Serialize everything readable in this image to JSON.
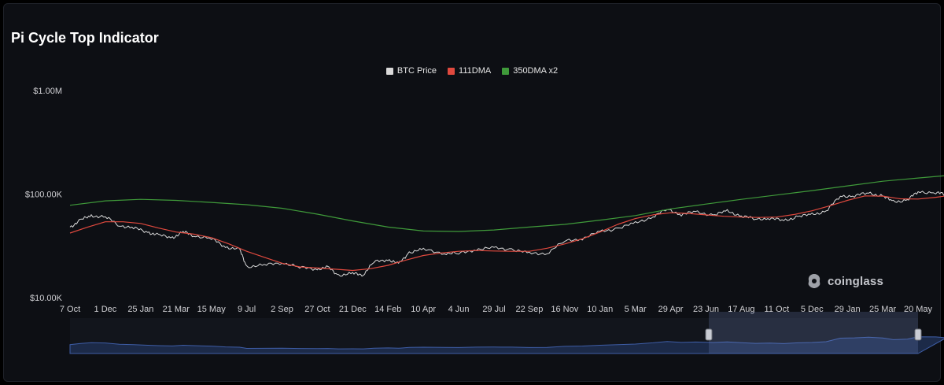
{
  "title": "Pi Cycle Top Indicator",
  "brand": "coinglass",
  "legend": [
    {
      "label": "BTC Price",
      "color": "#d9d9d9"
    },
    {
      "label": "111DMA",
      "color": "#e0493e"
    },
    {
      "label": "350DMA x2",
      "color": "#3f9a3a"
    }
  ],
  "chart_data": {
    "type": "line",
    "y_scale": "log",
    "ylim": [
      10000,
      1000000
    ],
    "y_ticks": [
      {
        "label": "$1.00M",
        "value": 1000000
      },
      {
        "label": "$100.00K",
        "value": 100000
      },
      {
        "label": "$10.00K",
        "value": 10000
      }
    ],
    "x_ticks": [
      "7 Oct",
      "1 Dec",
      "25 Jan",
      "21 Mar",
      "15 May",
      "9 Jul",
      "2 Sep",
      "27 Oct",
      "21 Dec",
      "14 Feb",
      "10 Apr",
      "4 Jun",
      "29 Jul",
      "22 Sep",
      "16 Nov",
      "10 Jan",
      "5 Mar",
      "29 Apr",
      "23 Jun",
      "17 Aug",
      "11 Oct",
      "5 Dec",
      "29 Jan",
      "25 Mar",
      "20 May"
    ],
    "series": [
      {
        "name": "BTC Price",
        "color": "#d9d9d9",
        "values": [
          [
            0,
            48000
          ],
          [
            0.3,
            56000
          ],
          [
            0.6,
            62000
          ],
          [
            1.0,
            60000
          ],
          [
            1.4,
            50000
          ],
          [
            1.8,
            47000
          ],
          [
            2.2,
            43000
          ],
          [
            2.5,
            40000
          ],
          [
            2.9,
            38000
          ],
          [
            3.2,
            43000
          ],
          [
            3.5,
            40000
          ],
          [
            4.0,
            37000
          ],
          [
            4.4,
            31000
          ],
          [
            4.8,
            29000
          ],
          [
            5.0,
            20000
          ],
          [
            5.5,
            20500
          ],
          [
            6.0,
            22000
          ],
          [
            6.5,
            19500
          ],
          [
            7.0,
            19000
          ],
          [
            7.3,
            19500
          ],
          [
            7.6,
            16500
          ],
          [
            8.0,
            17000
          ],
          [
            8.3,
            16800
          ],
          [
            8.6,
            22000
          ],
          [
            9.0,
            23500
          ],
          [
            9.3,
            21000
          ],
          [
            9.6,
            27500
          ],
          [
            10.0,
            29000
          ],
          [
            10.6,
            27000
          ],
          [
            11.0,
            26500
          ],
          [
            11.5,
            29500
          ],
          [
            12.0,
            30000
          ],
          [
            12.5,
            29500
          ],
          [
            13.0,
            26500
          ],
          [
            13.5,
            27000
          ],
          [
            14.0,
            35000
          ],
          [
            14.5,
            37500
          ],
          [
            15.0,
            43000
          ],
          [
            15.5,
            47000
          ],
          [
            16.0,
            52000
          ],
          [
            16.5,
            61000
          ],
          [
            16.9,
            71000
          ],
          [
            17.3,
            64000
          ],
          [
            17.7,
            67000
          ],
          [
            18.2,
            63000
          ],
          [
            18.6,
            68000
          ],
          [
            19.0,
            62000
          ],
          [
            19.4,
            57000
          ],
          [
            19.8,
            59000
          ],
          [
            20.2,
            55000
          ],
          [
            20.6,
            61000
          ],
          [
            21.0,
            63000
          ],
          [
            21.4,
            69000
          ],
          [
            21.8,
            95000
          ],
          [
            22.2,
            97000
          ],
          [
            22.6,
            102000
          ],
          [
            23.0,
            96000
          ],
          [
            23.3,
            84000
          ],
          [
            23.7,
            88000
          ],
          [
            24.0,
            105000
          ],
          [
            24.5,
            104000
          ],
          [
            24.8,
            98000
          ]
        ]
      },
      {
        "name": "111DMA",
        "color": "#e0493e",
        "values": [
          [
            0,
            42000
          ],
          [
            0.5,
            48000
          ],
          [
            1.0,
            54000
          ],
          [
            1.5,
            54000
          ],
          [
            2.0,
            52000
          ],
          [
            2.5,
            47000
          ],
          [
            3.0,
            43000
          ],
          [
            3.5,
            41000
          ],
          [
            4.0,
            38000
          ],
          [
            4.5,
            33000
          ],
          [
            5.0,
            28000
          ],
          [
            5.5,
            24500
          ],
          [
            6.0,
            21500
          ],
          [
            6.5,
            19800
          ],
          [
            7.0,
            19300
          ],
          [
            7.5,
            18800
          ],
          [
            8.0,
            18300
          ],
          [
            8.5,
            19000
          ],
          [
            9.0,
            20500
          ],
          [
            9.5,
            23000
          ],
          [
            10.0,
            25500
          ],
          [
            10.5,
            27000
          ],
          [
            11.0,
            28000
          ],
          [
            11.5,
            28500
          ],
          [
            12.0,
            28200
          ],
          [
            12.5,
            28000
          ],
          [
            13.0,
            28000
          ],
          [
            13.5,
            30000
          ],
          [
            14.0,
            33000
          ],
          [
            14.5,
            37000
          ],
          [
            15.0,
            43000
          ],
          [
            15.5,
            51000
          ],
          [
            16.0,
            58000
          ],
          [
            16.5,
            63000
          ],
          [
            17.0,
            66000
          ],
          [
            17.5,
            65000
          ],
          [
            18.0,
            63000
          ],
          [
            18.5,
            61000
          ],
          [
            19.0,
            60000
          ],
          [
            19.5,
            59500
          ],
          [
            20.0,
            60000
          ],
          [
            20.5,
            63500
          ],
          [
            21.0,
            69000
          ],
          [
            21.5,
            77000
          ],
          [
            22.0,
            87000
          ],
          [
            22.5,
            96000
          ],
          [
            23.0,
            95500
          ],
          [
            23.5,
            90000
          ],
          [
            24.0,
            89500
          ],
          [
            24.5,
            93000
          ],
          [
            24.8,
            96000
          ]
        ]
      },
      {
        "name": "350DMA x2",
        "color": "#3f9a3a",
        "values": [
          [
            0,
            78000
          ],
          [
            1.0,
            86000
          ],
          [
            2.0,
            89000
          ],
          [
            3.0,
            87000
          ],
          [
            4.0,
            83000
          ],
          [
            5.0,
            79000
          ],
          [
            6.0,
            73000
          ],
          [
            7.0,
            64000
          ],
          [
            8.0,
            55000
          ],
          [
            9.0,
            48000
          ],
          [
            10.0,
            44000
          ],
          [
            11.0,
            43500
          ],
          [
            12.0,
            45000
          ],
          [
            13.0,
            48000
          ],
          [
            14.0,
            51000
          ],
          [
            15.0,
            56000
          ],
          [
            16.0,
            62000
          ],
          [
            17.0,
            72000
          ],
          [
            18.0,
            80000
          ],
          [
            19.0,
            89000
          ],
          [
            20.0,
            98000
          ],
          [
            21.0,
            108000
          ],
          [
            22.0,
            120000
          ],
          [
            23.0,
            133000
          ],
          [
            24.0,
            143000
          ],
          [
            24.8,
            151000
          ]
        ]
      }
    ],
    "grid": false
  }
}
